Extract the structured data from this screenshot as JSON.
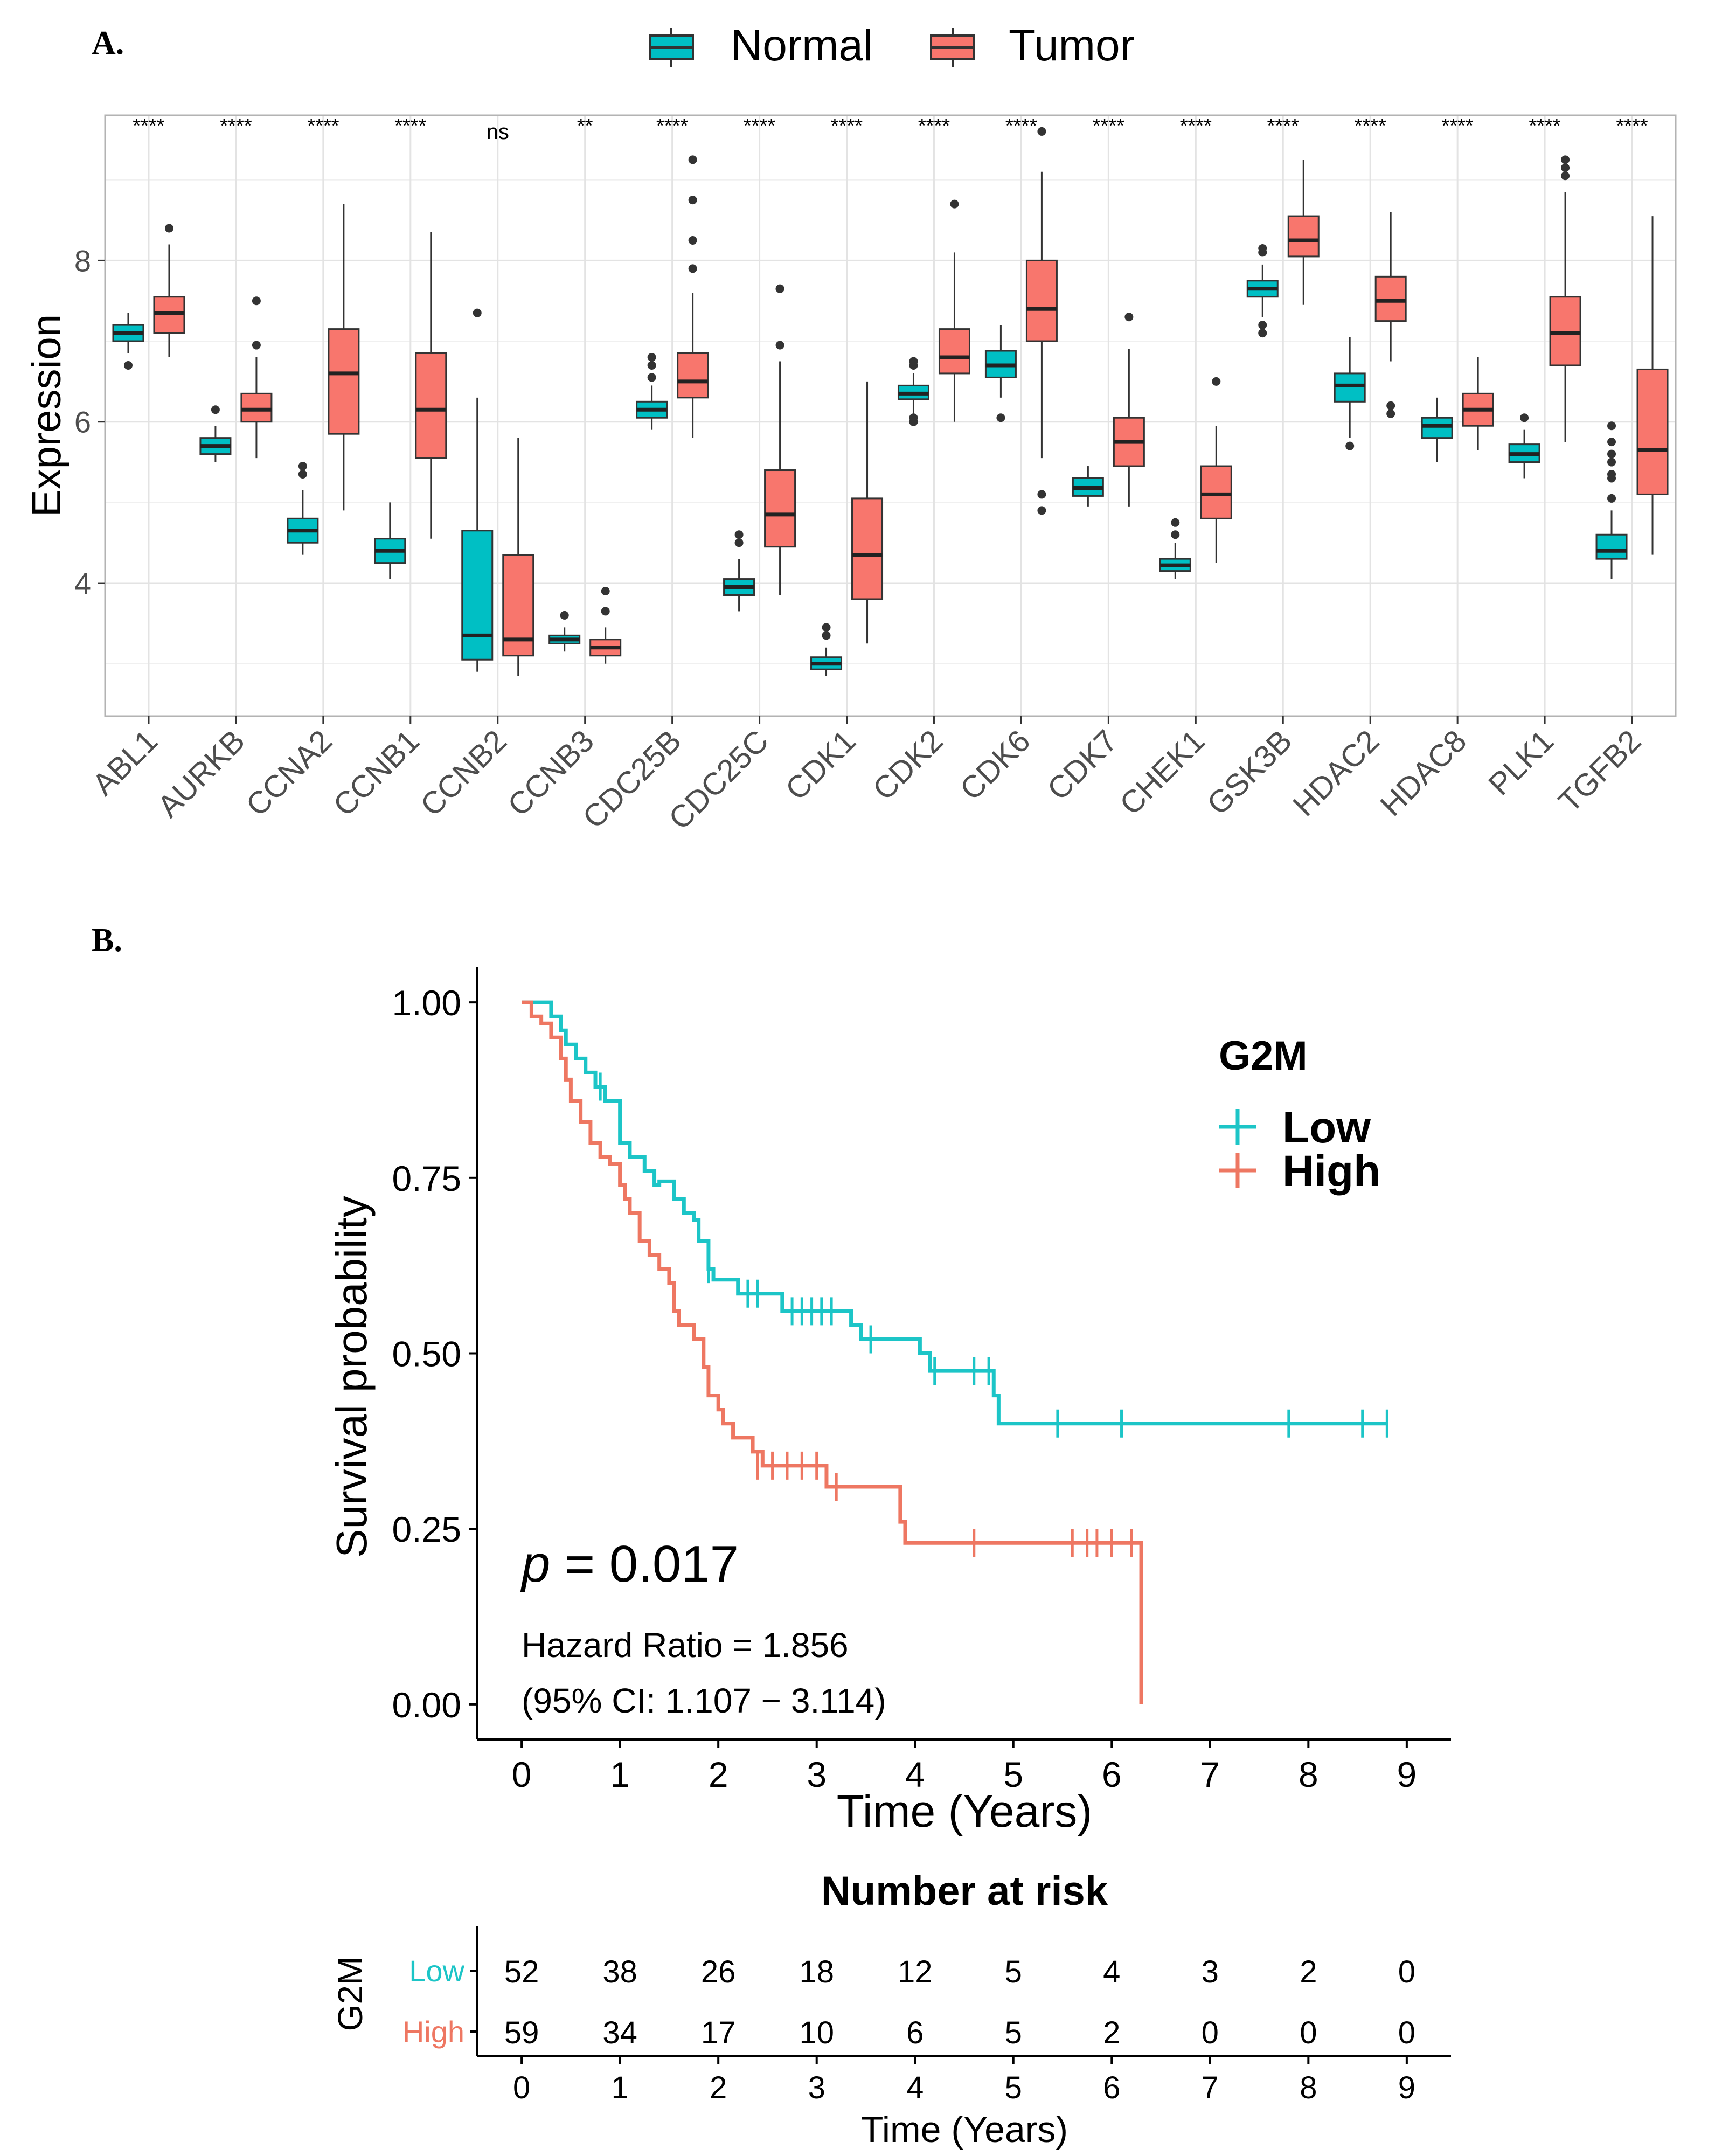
{
  "colors": {
    "normal": "#00BFC4",
    "tumor": "#F8766D",
    "low": "#1CC5C7",
    "high": "#EE7762",
    "grid": "#E3E3E3",
    "panel_border": "#B3B3B3",
    "text": "#000000",
    "tick_text": "#4D4D4D"
  },
  "panel_a": {
    "label": "A.",
    "legend": {
      "normal": "Normal",
      "tumor": "Tumor"
    }
  },
  "panel_b": {
    "label": "B.",
    "p_value_prefix": "p",
    "p_value_text": " = 0.017",
    "hazard_ratio": "Hazard Ratio = 1.856",
    "ci": "(95% CI: 1.107 − 3.114)",
    "risk_table": {
      "title": "Number at risk",
      "ylabel": "G2M",
      "xlabel": "Time (Years)",
      "times": [
        0,
        1,
        2,
        3,
        4,
        5,
        6,
        7,
        8,
        9
      ],
      "rows": [
        {
          "label": "Low",
          "counts": [
            52,
            38,
            26,
            18,
            12,
            5,
            4,
            3,
            2,
            0
          ]
        },
        {
          "label": "High",
          "counts": [
            59,
            34,
            17,
            10,
            6,
            5,
            2,
            0,
            0,
            0
          ]
        }
      ]
    }
  },
  "chart_data": [
    {
      "type": "boxplot",
      "title": "",
      "xlabel": "",
      "ylabel": "Expression",
      "ylim": [
        2.35,
        9.8
      ],
      "yticks": [
        4,
        6,
        8
      ],
      "categories": [
        "ABL1",
        "AURKB",
        "CCNA2",
        "CCNB1",
        "CCNB2",
        "CCNB3",
        "CDC25B",
        "CDC25C",
        "CDK1",
        "CDK2",
        "CDK6",
        "CDK7",
        "CHEK1",
        "GSK3B",
        "HDAC2",
        "HDAC8",
        "PLK1",
        "TGFB2"
      ],
      "significance": [
        "****",
        "****",
        "****",
        "****",
        "ns",
        "**",
        "****",
        "****",
        "****",
        "****",
        "****",
        "****",
        "****",
        "****",
        "****",
        "****",
        "****",
        "****"
      ],
      "series": [
        {
          "name": "Normal",
          "boxes": [
            {
              "min": 6.85,
              "q1": 7.0,
              "median": 7.1,
              "q3": 7.2,
              "max": 7.35,
              "outliers": [
                6.7
              ]
            },
            {
              "min": 5.5,
              "q1": 5.6,
              "median": 5.7,
              "q3": 5.8,
              "max": 5.95,
              "outliers": [
                6.15
              ]
            },
            {
              "min": 4.35,
              "q1": 4.5,
              "median": 4.65,
              "q3": 4.8,
              "max": 5.15,
              "outliers": [
                5.35,
                5.45
              ]
            },
            {
              "min": 4.05,
              "q1": 4.25,
              "median": 4.4,
              "q3": 4.55,
              "max": 5.0,
              "outliers": []
            },
            {
              "min": 2.9,
              "q1": 3.05,
              "median": 3.35,
              "q3": 4.65,
              "max": 6.3,
              "outliers": [
                7.35
              ]
            },
            {
              "min": 3.15,
              "q1": 3.25,
              "median": 3.3,
              "q3": 3.35,
              "max": 3.45,
              "outliers": [
                3.6
              ]
            },
            {
              "min": 5.9,
              "q1": 6.05,
              "median": 6.15,
              "q3": 6.25,
              "max": 6.45,
              "outliers": [
                6.55,
                6.7,
                6.8
              ]
            },
            {
              "min": 3.65,
              "q1": 3.85,
              "median": 3.95,
              "q3": 4.05,
              "max": 4.3,
              "outliers": [
                4.5,
                4.6
              ]
            },
            {
              "min": 2.85,
              "q1": 2.93,
              "median": 3.0,
              "q3": 3.08,
              "max": 3.2,
              "outliers": [
                3.35,
                3.45
              ]
            },
            {
              "min": 6.1,
              "q1": 6.28,
              "median": 6.35,
              "q3": 6.45,
              "max": 6.6,
              "outliers": [
                6.0,
                6.05,
                6.7,
                6.75
              ]
            },
            {
              "min": 6.3,
              "q1": 6.55,
              "median": 6.7,
              "q3": 6.88,
              "max": 7.2,
              "outliers": [
                6.05
              ]
            },
            {
              "min": 4.95,
              "q1": 5.08,
              "median": 5.18,
              "q3": 5.3,
              "max": 5.45,
              "outliers": []
            },
            {
              "min": 4.05,
              "q1": 4.15,
              "median": 4.22,
              "q3": 4.3,
              "max": 4.5,
              "outliers": [
                4.6,
                4.75
              ]
            },
            {
              "min": 7.3,
              "q1": 7.55,
              "median": 7.65,
              "q3": 7.75,
              "max": 7.95,
              "outliers": [
                7.1,
                7.2,
                8.1,
                8.15
              ]
            },
            {
              "min": 5.8,
              "q1": 6.25,
              "median": 6.45,
              "q3": 6.6,
              "max": 7.05,
              "outliers": [
                5.7
              ]
            },
            {
              "min": 5.5,
              "q1": 5.8,
              "median": 5.95,
              "q3": 6.05,
              "max": 6.3,
              "outliers": []
            },
            {
              "min": 5.3,
              "q1": 5.5,
              "median": 5.6,
              "q3": 5.72,
              "max": 5.9,
              "outliers": [
                6.05
              ]
            },
            {
              "min": 4.05,
              "q1": 4.3,
              "median": 4.4,
              "q3": 4.6,
              "max": 4.9,
              "outliers": [
                5.05,
                5.3,
                5.35,
                5.5,
                5.6,
                5.75,
                5.95
              ]
            }
          ]
        },
        {
          "name": "Tumor",
          "boxes": [
            {
              "min": 6.8,
              "q1": 7.1,
              "median": 7.35,
              "q3": 7.55,
              "max": 8.2,
              "outliers": [
                8.4
              ]
            },
            {
              "min": 5.55,
              "q1": 6.0,
              "median": 6.15,
              "q3": 6.35,
              "max": 6.8,
              "outliers": [
                6.95,
                7.5
              ]
            },
            {
              "min": 4.9,
              "q1": 5.85,
              "median": 6.6,
              "q3": 7.15,
              "max": 8.7,
              "outliers": []
            },
            {
              "min": 4.55,
              "q1": 5.55,
              "median": 6.15,
              "q3": 6.85,
              "max": 8.35,
              "outliers": []
            },
            {
              "min": 2.85,
              "q1": 3.1,
              "median": 3.3,
              "q3": 4.35,
              "max": 5.8,
              "outliers": []
            },
            {
              "min": 3.0,
              "q1": 3.1,
              "median": 3.2,
              "q3": 3.3,
              "max": 3.45,
              "outliers": [
                3.65,
                3.9
              ]
            },
            {
              "min": 5.8,
              "q1": 6.3,
              "median": 6.5,
              "q3": 6.85,
              "max": 7.6,
              "outliers": [
                7.9,
                8.25,
                8.75,
                9.25
              ]
            },
            {
              "min": 3.85,
              "q1": 4.45,
              "median": 4.85,
              "q3": 5.4,
              "max": 6.75,
              "outliers": [
                6.95,
                7.65,
                7.65
              ]
            },
            {
              "min": 3.25,
              "q1": 3.8,
              "median": 4.35,
              "q3": 5.05,
              "max": 6.5,
              "outliers": []
            },
            {
              "min": 6.0,
              "q1": 6.6,
              "median": 6.8,
              "q3": 7.15,
              "max": 8.1,
              "outliers": [
                8.7
              ]
            },
            {
              "min": 5.55,
              "q1": 7.0,
              "median": 7.4,
              "q3": 8.0,
              "max": 9.1,
              "outliers": [
                9.6,
                4.9,
                5.1
              ]
            },
            {
              "min": 4.95,
              "q1": 5.45,
              "median": 5.75,
              "q3": 6.05,
              "max": 6.9,
              "outliers": [
                7.3
              ]
            },
            {
              "min": 4.25,
              "q1": 4.8,
              "median": 5.1,
              "q3": 5.45,
              "max": 5.95,
              "outliers": [
                6.5
              ]
            },
            {
              "min": 7.45,
              "q1": 8.05,
              "median": 8.25,
              "q3": 8.55,
              "max": 9.25,
              "outliers": []
            },
            {
              "min": 6.75,
              "q1": 7.25,
              "median": 7.5,
              "q3": 7.8,
              "max": 8.6,
              "outliers": [
                6.1,
                6.2
              ]
            },
            {
              "min": 5.65,
              "q1": 5.95,
              "median": 6.15,
              "q3": 6.35,
              "max": 6.8,
              "outliers": []
            },
            {
              "min": 5.75,
              "q1": 6.7,
              "median": 7.1,
              "q3": 7.55,
              "max": 8.85,
              "outliers": [
                9.05,
                9.15,
                9.25
              ]
            },
            {
              "min": 4.35,
              "q1": 5.1,
              "median": 5.65,
              "q3": 6.65,
              "max": 8.55,
              "outliers": []
            }
          ]
        }
      ]
    },
    {
      "type": "line",
      "subtype": "kaplan-meier",
      "title": "",
      "xlabel": "Time (Years)",
      "ylabel": "Survival probability",
      "xlim": [
        -0.45,
        9.45
      ],
      "ylim": [
        -0.05,
        1.05
      ],
      "xticks": [
        0,
        1,
        2,
        3,
        4,
        5,
        6,
        7,
        8,
        9
      ],
      "yticks": [
        "0.00",
        "0.25",
        "0.50",
        "0.75",
        "1.00"
      ],
      "legend_title": "G2M",
      "series": [
        {
          "name": "Low",
          "steps": [
            [
              0,
              1.0
            ],
            [
              0.3,
              0.98
            ],
            [
              0.4,
              0.96
            ],
            [
              0.45,
              0.94
            ],
            [
              0.55,
              0.92
            ],
            [
              0.65,
              0.9
            ],
            [
              0.75,
              0.88
            ],
            [
              0.85,
              0.86
            ],
            [
              1.0,
              0.8
            ],
            [
              1.1,
              0.78
            ],
            [
              1.25,
              0.76
            ],
            [
              1.35,
              0.74
            ],
            [
              1.4,
              0.745
            ],
            [
              1.45,
              0.745
            ],
            [
              1.55,
              0.72
            ],
            [
              1.65,
              0.7
            ],
            [
              1.75,
              0.69
            ],
            [
              1.8,
              0.66
            ],
            [
              1.9,
              0.62
            ],
            [
              1.95,
              0.605
            ],
            [
              2.1,
              0.605
            ],
            [
              2.2,
              0.585
            ],
            [
              2.5,
              0.585
            ],
            [
              2.65,
              0.56
            ],
            [
              3.35,
              0.54
            ],
            [
              3.45,
              0.52
            ],
            [
              4.05,
              0.5
            ],
            [
              4.15,
              0.475
            ],
            [
              4.8,
              0.44
            ],
            [
              4.85,
              0.4
            ],
            [
              8.8,
              0.4
            ]
          ],
          "censor": [
            [
              0.8,
              0.88
            ],
            [
              1.9,
              0.62
            ],
            [
              2.3,
              0.585
            ],
            [
              2.4,
              0.585
            ],
            [
              2.75,
              0.56
            ],
            [
              2.85,
              0.56
            ],
            [
              2.95,
              0.56
            ],
            [
              3.05,
              0.56
            ],
            [
              3.15,
              0.56
            ],
            [
              3.55,
              0.52
            ],
            [
              4.2,
              0.475
            ],
            [
              4.6,
              0.475
            ],
            [
              4.75,
              0.475
            ],
            [
              5.45,
              0.4
            ],
            [
              6.1,
              0.4
            ],
            [
              7.8,
              0.4
            ],
            [
              8.55,
              0.4
            ],
            [
              8.8,
              0.4
            ]
          ]
        },
        {
          "name": "High",
          "steps": [
            [
              0,
              1.0
            ],
            [
              0.1,
              0.98
            ],
            [
              0.2,
              0.97
            ],
            [
              0.3,
              0.95
            ],
            [
              0.4,
              0.92
            ],
            [
              0.45,
              0.89
            ],
            [
              0.5,
              0.86
            ],
            [
              0.6,
              0.83
            ],
            [
              0.7,
              0.8
            ],
            [
              0.8,
              0.78
            ],
            [
              0.9,
              0.77
            ],
            [
              1.0,
              0.74
            ],
            [
              1.05,
              0.72
            ],
            [
              1.1,
              0.7
            ],
            [
              1.2,
              0.66
            ],
            [
              1.3,
              0.64
            ],
            [
              1.4,
              0.62
            ],
            [
              1.5,
              0.6
            ],
            [
              1.55,
              0.56
            ],
            [
              1.6,
              0.54
            ],
            [
              1.75,
              0.52
            ],
            [
              1.85,
              0.48
            ],
            [
              1.9,
              0.44
            ],
            [
              2.0,
              0.42
            ],
            [
              2.05,
              0.4
            ],
            [
              2.15,
              0.38
            ],
            [
              2.35,
              0.36
            ],
            [
              2.45,
              0.34
            ],
            [
              3.1,
              0.31
            ],
            [
              3.85,
              0.26
            ],
            [
              3.9,
              0.23
            ],
            [
              6.3,
              0.23
            ],
            [
              6.3,
              0.0
            ]
          ],
          "censor": [
            [
              2.4,
              0.34
            ],
            [
              2.55,
              0.34
            ],
            [
              2.7,
              0.34
            ],
            [
              2.85,
              0.34
            ],
            [
              3.0,
              0.34
            ],
            [
              3.2,
              0.31
            ],
            [
              4.6,
              0.23
            ],
            [
              5.6,
              0.23
            ],
            [
              5.75,
              0.23
            ],
            [
              5.85,
              0.23
            ],
            [
              6.0,
              0.23
            ],
            [
              6.2,
              0.23
            ]
          ]
        }
      ]
    }
  ]
}
